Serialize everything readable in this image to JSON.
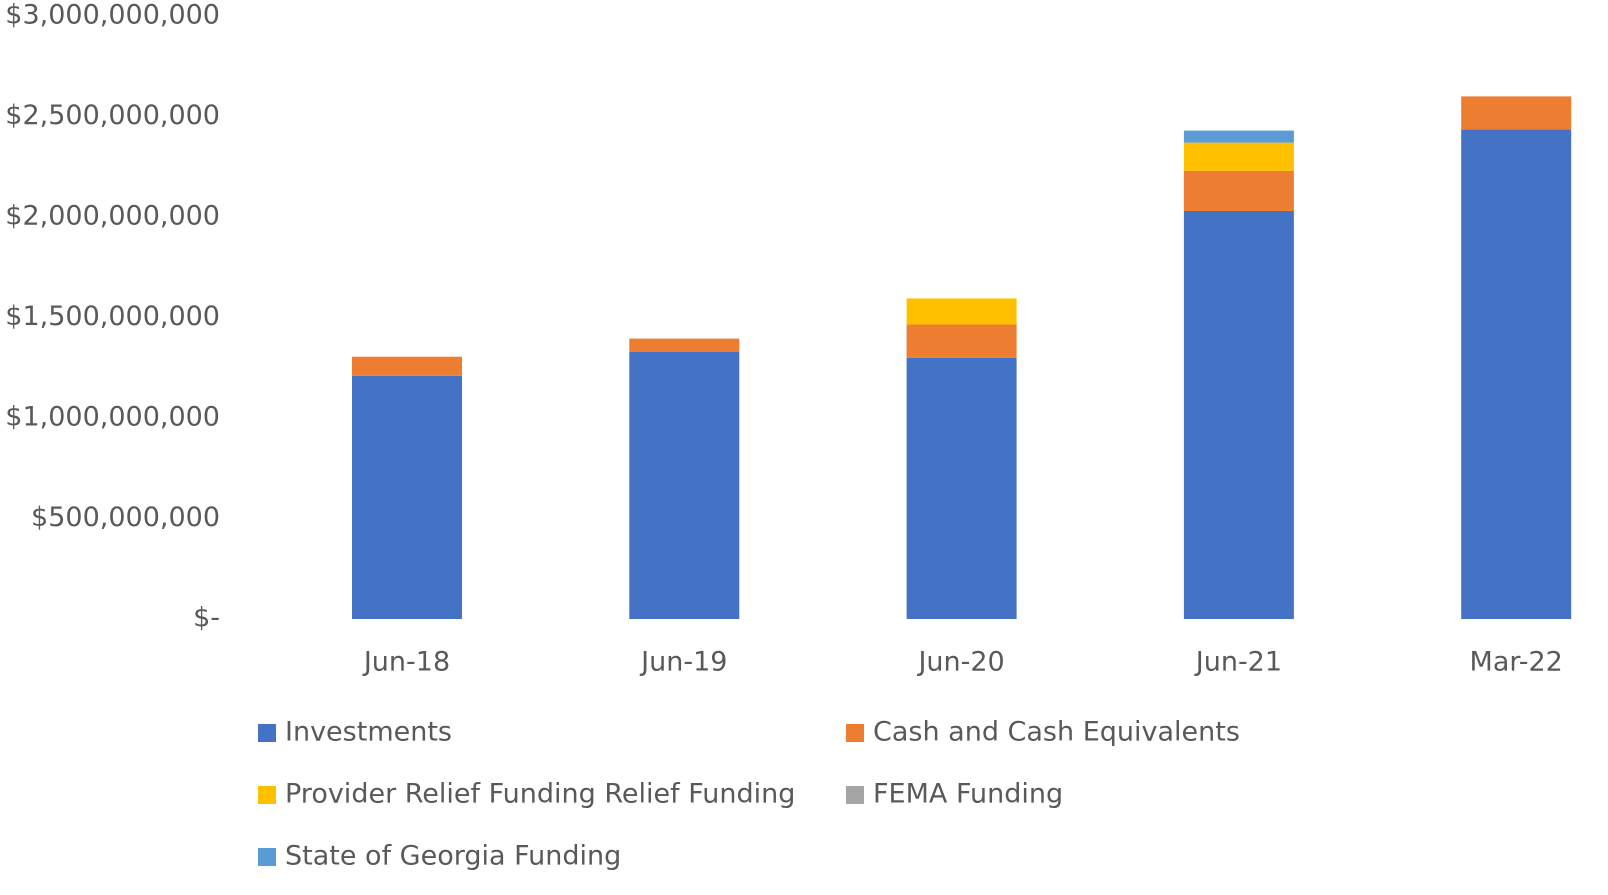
{
  "chart_data": {
    "type": "stacked_bar",
    "categories": [
      "Jun-18",
      "Jun-19",
      "Jun-20",
      "Jun-21",
      "Mar-22"
    ],
    "series": [
      {
        "name": "Investments",
        "color": "#4472c4",
        "values": [
          1210000000,
          1330000000,
          1300000000,
          2030000000,
          2435000000
        ]
      },
      {
        "name": "Cash and Cash Equivalents",
        "color": "#ed7d31",
        "values": [
          95000000,
          65000000,
          165000000,
          200000000,
          165000000
        ]
      },
      {
        "name": "Provider Relief Funding Relief Funding",
        "color": "#ffc000",
        "values": [
          0,
          0,
          130000000,
          140000000,
          0
        ]
      },
      {
        "name": "FEMA Funding",
        "color": "#a5a5a5",
        "values": [
          0,
          0,
          0,
          0,
          0
        ]
      },
      {
        "name": "State of Georgia Funding",
        "color": "#5b9bd5",
        "values": [
          0,
          0,
          0,
          60000000,
          0
        ]
      }
    ],
    "ylim": [
      0,
      3000000000
    ],
    "yticks": [
      {
        "value": 0,
        "label": "$-"
      },
      {
        "value": 500000000,
        "label": "$500,000,000"
      },
      {
        "value": 1000000000,
        "label": "$1,000,000,000"
      },
      {
        "value": 1500000000,
        "label": "$1,500,000,000"
      },
      {
        "value": 2000000000,
        "label": "$2,000,000,000"
      },
      {
        "value": 2500000000,
        "label": "$2,500,000,000"
      },
      {
        "value": 3000000000,
        "label": "$3,000,000,000"
      }
    ],
    "grid": false,
    "legend": "bottom"
  }
}
